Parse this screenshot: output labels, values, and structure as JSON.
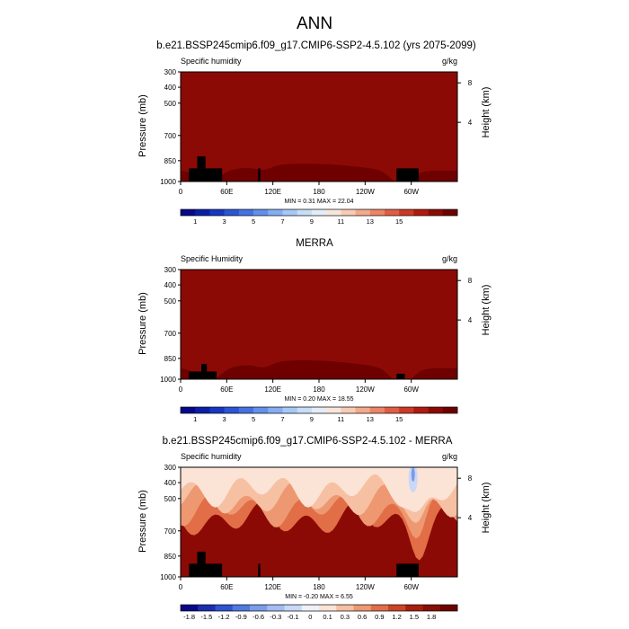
{
  "figure_title": "ANN",
  "chart_data": [
    {
      "type": "heatmap",
      "title": "b.e21.BSSP245cmip6.f09_g17.CMIP6-SSP2-4.5.102 (yrs 2075-2099)",
      "left_label": "Specific humidity",
      "right_label": "g/kg",
      "ylabel": "Pressure (mb)",
      "right_axis_label": "Height (km)",
      "x_ticks": [
        "0",
        "60E",
        "120E",
        "180",
        "120W",
        "60W"
      ],
      "y_ticks": [
        "300",
        "400",
        "500",
        "700",
        "850",
        "1000"
      ],
      "height_ticks": [
        "8",
        "4"
      ],
      "stats": "MIN =   0.31  MAX =  22.04",
      "colorbar_labels": [
        "1",
        "3",
        "5",
        "7",
        "9",
        "11",
        "13",
        "15"
      ],
      "min": 0.31,
      "max": 22.04
    },
    {
      "type": "heatmap",
      "title": "MERRA",
      "left_label": "Specific Humidity",
      "right_label": "g/kg",
      "ylabel": "Pressure (mb)",
      "right_axis_label": "Height (km)",
      "x_ticks": [
        "0",
        "60E",
        "120E",
        "180",
        "120W",
        "60W"
      ],
      "y_ticks": [
        "300",
        "400",
        "500",
        "700",
        "850",
        "1000"
      ],
      "height_ticks": [
        "8",
        "4"
      ],
      "stats": "MIN =   0.20  MAX =  18.55",
      "colorbar_labels": [
        "1",
        "3",
        "5",
        "7",
        "9",
        "11",
        "13",
        "15"
      ],
      "min": 0.2,
      "max": 18.55
    },
    {
      "type": "heatmap",
      "title": "b.e21.BSSP245cmip6.f09_g17.CMIP6-SSP2-4.5.102 - MERRA",
      "left_label": "Specific humidity",
      "right_label": "g/kg",
      "ylabel": "Pressure (mb)",
      "right_axis_label": "Height (km)",
      "x_ticks": [
        "0",
        "60E",
        "120E",
        "180",
        "120W",
        "60W"
      ],
      "y_ticks": [
        "300",
        "400",
        "500",
        "700",
        "850",
        "1000"
      ],
      "height_ticks": [
        "8",
        "4"
      ],
      "stats": "MIN =  -0.20  MAX =   6.55",
      "colorbar_labels": [
        "-1.8",
        "-1.5",
        "-1.2",
        "-0.9",
        "-0.6",
        "-0.3",
        "-0.1",
        "0",
        "0.1",
        "0.3",
        "0.6",
        "0.9",
        "1.2",
        "1.5",
        "1.8"
      ],
      "min": -0.2,
      "max": 6.55
    }
  ],
  "colors": {
    "full_scale": [
      "#08088a",
      "#0a1fa8",
      "#1538c2",
      "#2a55d6",
      "#4572e2",
      "#6390ec",
      "#84adf2",
      "#a6c8f6",
      "#c7ddf8",
      "#e4ecf5",
      "#f7e6dc",
      "#f8cbb4",
      "#f4a98c",
      "#ec8466",
      "#df5e43",
      "#cc3a26",
      "#b01a10",
      "#8c0a05",
      "#6e0000"
    ],
    "diff_scale": [
      "#08088a",
      "#1a2eb0",
      "#2f52d0",
      "#5079e0",
      "#7a9ce9",
      "#a4bdf0",
      "#c9d8f5",
      "#eef2f8",
      "#fbe3d6",
      "#f6c0a3",
      "#ee9872",
      "#e16e47",
      "#cc4426",
      "#aa1e0e",
      "#861005",
      "#6e0000"
    ],
    "land": "#000000"
  }
}
